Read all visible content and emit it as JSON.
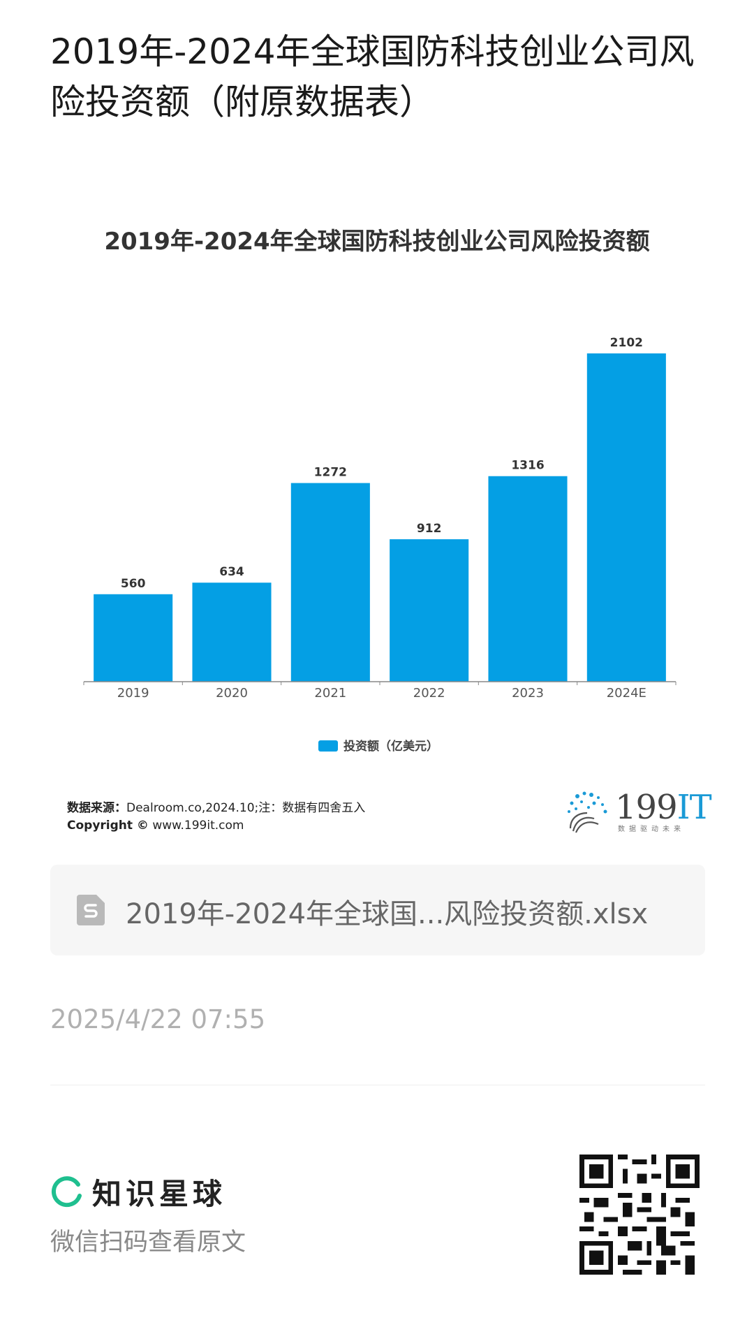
{
  "post": {
    "title": "2019年-2024年全球国防科技创业公司风险投资额（附原数据表）"
  },
  "chart_data": {
    "type": "bar",
    "title": "2019年-2024年全球国防科技创业公司风险投资额",
    "categories": [
      "2019",
      "2020",
      "2021",
      "2022",
      "2023",
      "2024E"
    ],
    "series": [
      {
        "name": "投资额（亿美元）",
        "values": [
          560,
          634,
          1272,
          912,
          1316,
          2102
        ]
      }
    ],
    "ylim": [
      0,
      2102
    ],
    "grid": false,
    "legend": "bottom",
    "colors": {
      "bar": "#049fe4",
      "axis": "#888888",
      "label": "#333333"
    }
  },
  "source": {
    "label": "数据来源：",
    "text": "Dealroom.co,2024.10;注：数据有四舍五入",
    "copyright_label": "Copyright ©",
    "copyright_url": "www.199it.com"
  },
  "logo": {
    "brand_main": "199",
    "brand_accent": "IT",
    "tagline": "数据驱动未来"
  },
  "attachment": {
    "icon": "spreadsheet-file-icon",
    "filename": "2019年-2024年全球国...风险投资额.xlsx"
  },
  "meta": {
    "timestamp": "2025/4/22 07:55"
  },
  "footer": {
    "brand": "知识星球",
    "hint": "微信扫码查看原文",
    "icon": "planet-logo-icon",
    "accent_color": "#1fbf8f"
  }
}
